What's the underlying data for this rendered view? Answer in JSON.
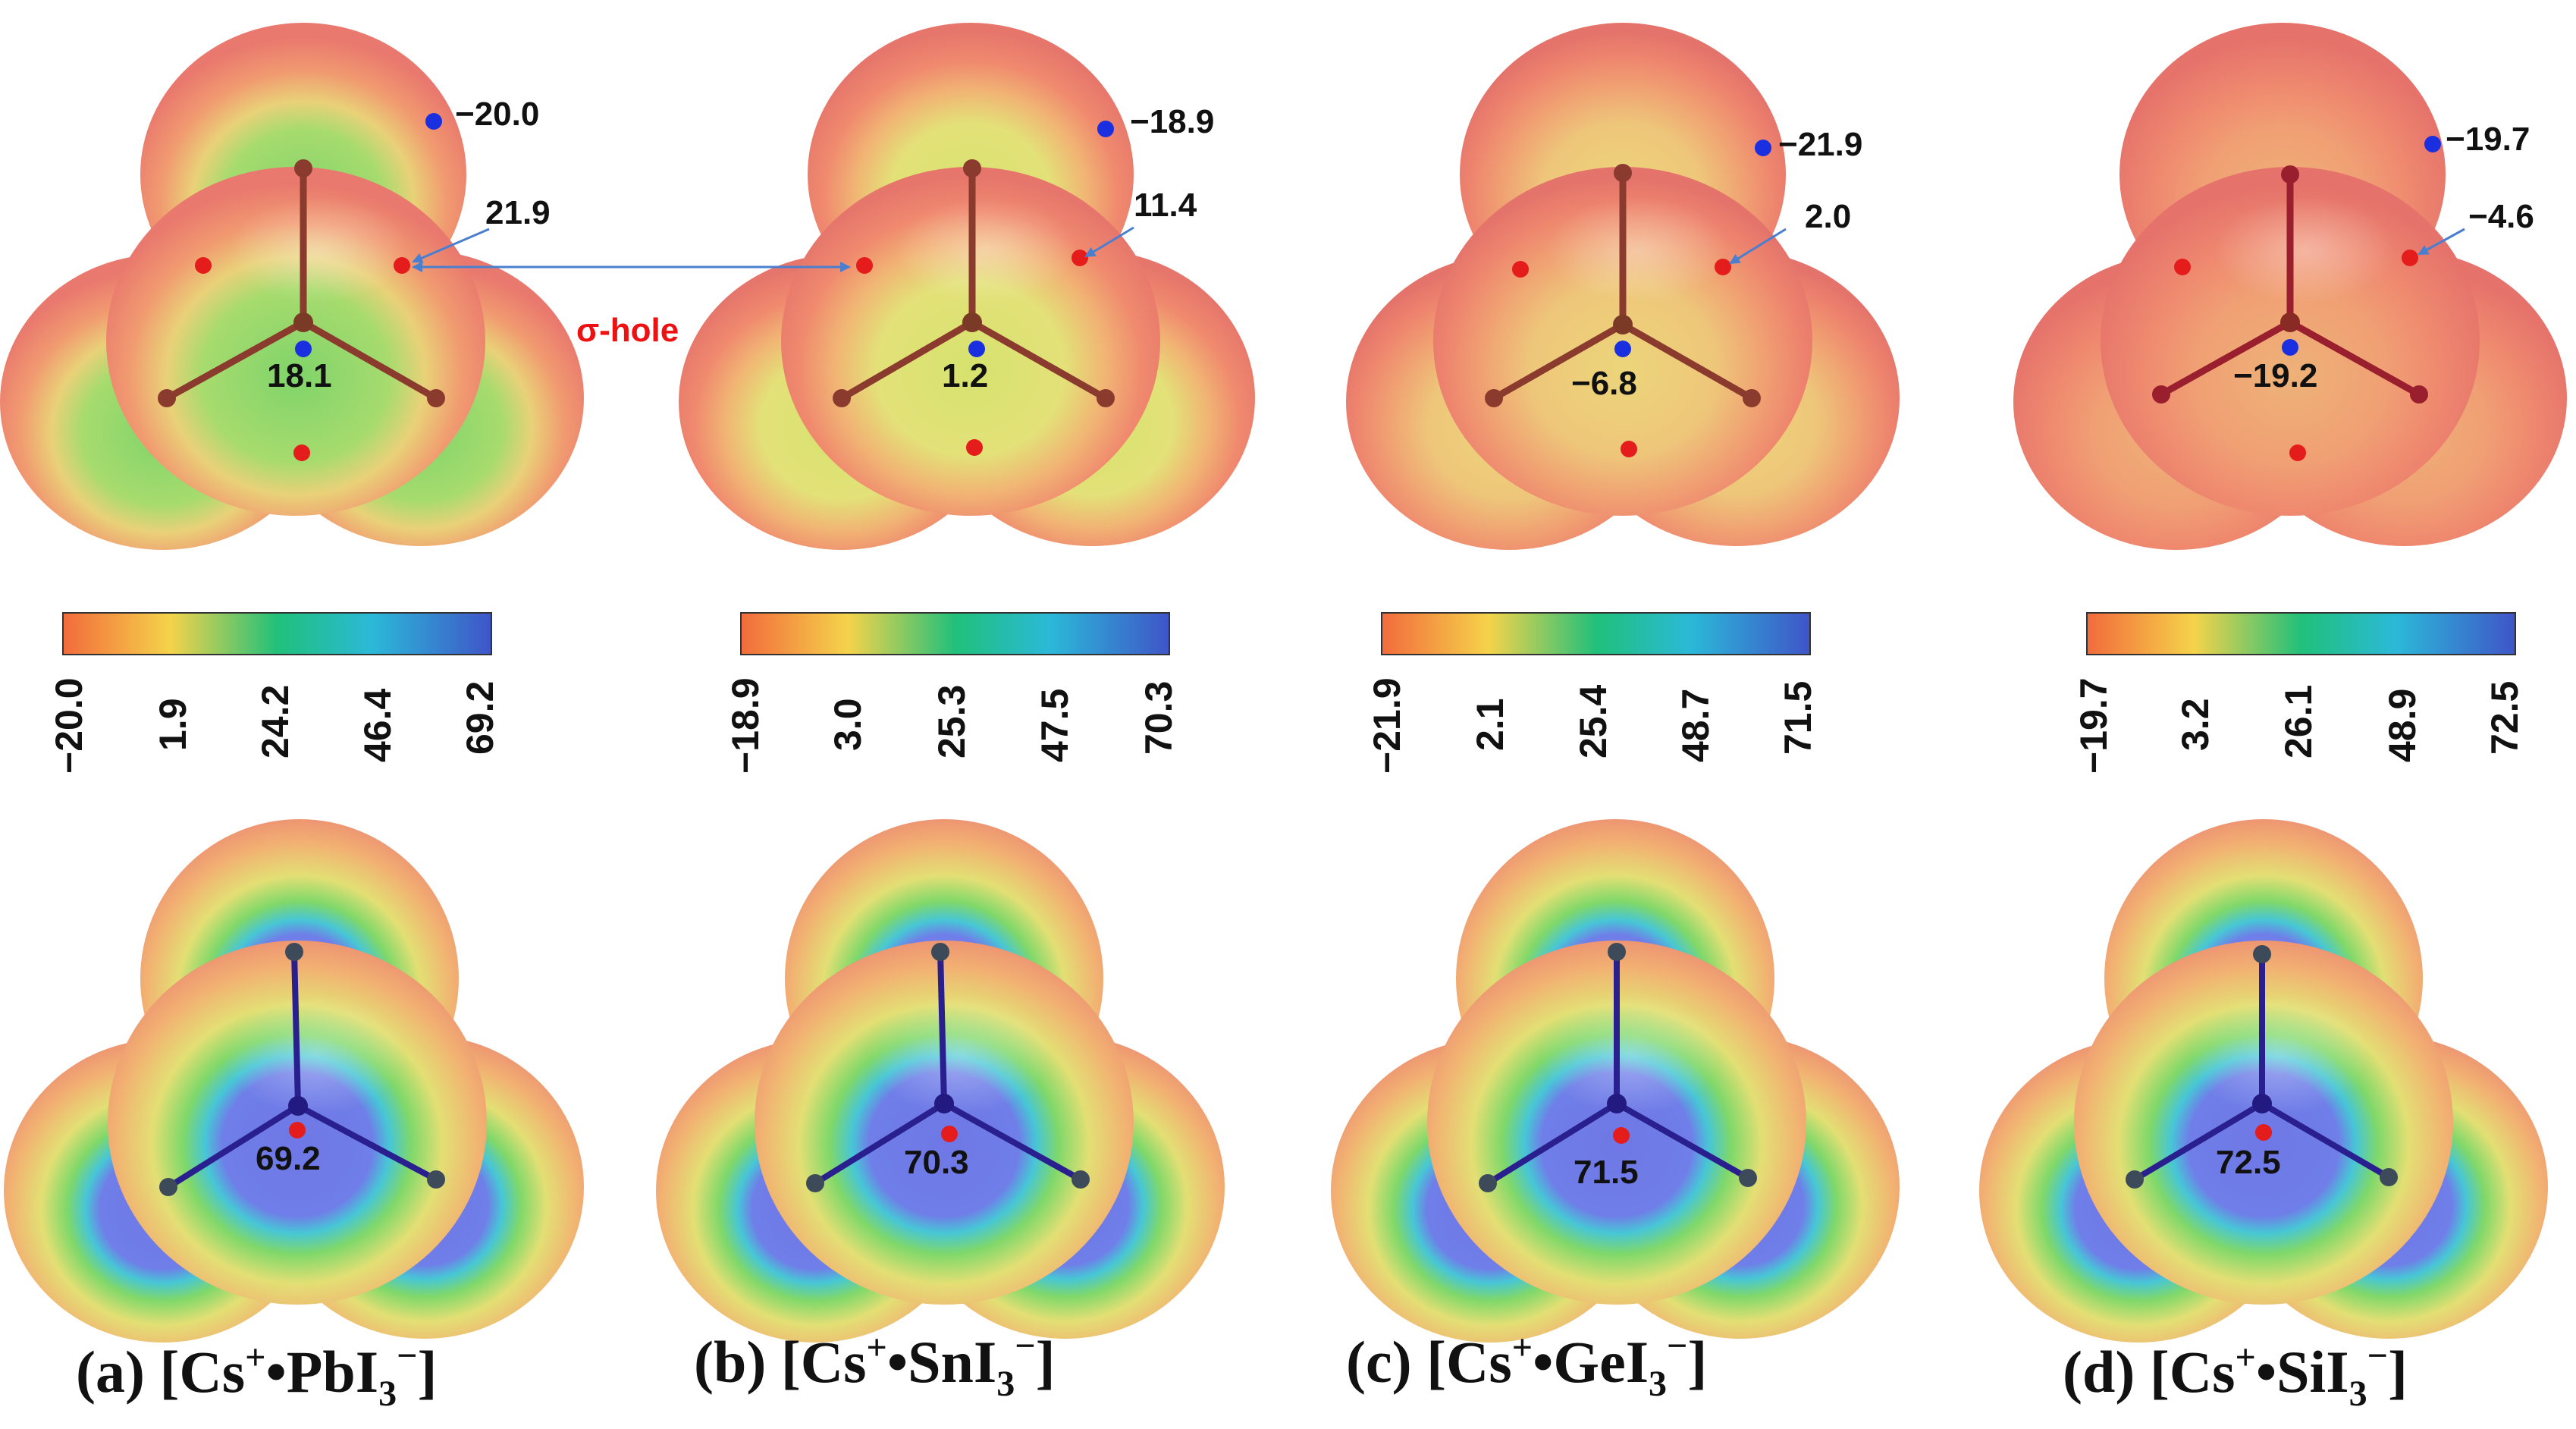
{
  "figure": {
    "annotation": "σ-hole",
    "panels": [
      {
        "id": "a",
        "caption_prefix": "(a) [Cs",
        "caption_plus": "+",
        "caption_middle": "•PbI",
        "caption_sub": "3",
        "caption_minus": "−",
        "caption_suffix": "]",
        "top": {
          "center_value": "18.1",
          "outer_min": "−20.0",
          "sigma_hole": "21.9"
        },
        "colorbar_ticks": [
          "−20.0",
          "1.9",
          "24.2",
          "46.4",
          "69.2"
        ],
        "bottom": {
          "center_value": "69.2"
        }
      },
      {
        "id": "b",
        "caption_prefix": "(b) [Cs",
        "caption_plus": "+",
        "caption_middle": "•SnI",
        "caption_sub": "3",
        "caption_minus": "−",
        "caption_suffix": "]",
        "top": {
          "center_value": "1.2",
          "outer_min": "−18.9",
          "sigma_hole": "11.4"
        },
        "colorbar_ticks": [
          "−18.9",
          "3.0",
          "25.3",
          "47.5",
          "70.3"
        ],
        "bottom": {
          "center_value": "70.3"
        }
      },
      {
        "id": "c",
        "caption_prefix": "(c) [Cs",
        "caption_plus": "+",
        "caption_middle": "•GeI",
        "caption_sub": "3",
        "caption_minus": "−",
        "caption_suffix": "]",
        "top": {
          "center_value": "−6.8",
          "outer_min": "−21.9",
          "sigma_hole": "2.0"
        },
        "colorbar_ticks": [
          "−21.9",
          "2.1",
          "25.4",
          "48.7",
          "71.5"
        ],
        "bottom": {
          "center_value": "71.5"
        }
      },
      {
        "id": "d",
        "caption_prefix": "(d) [Cs",
        "caption_plus": "+",
        "caption_middle": "•SiI",
        "caption_sub": "3",
        "caption_minus": "−",
        "caption_suffix": "]",
        "top": {
          "center_value": "−19.2",
          "outer_min": "−19.7",
          "sigma_hole": "−4.6"
        },
        "colorbar_ticks": [
          "−19.7",
          "3.2",
          "26.1",
          "48.9",
          "72.5"
        ],
        "bottom": {
          "center_value": "72.5"
        }
      }
    ],
    "colors": {
      "surface_red": "#f07a6e",
      "surface_orange": "#f4a070",
      "positive_green": "#86d26a",
      "positive_yellow": "#e6e27a",
      "positive_blue": "#6f7ae8",
      "max_point": "#e51c1c",
      "min_point": "#1a2fe0",
      "bond_top": "#8b3a2e",
      "bond_bottom": "#2a1f8f",
      "arrow": "#4a7fd0"
    }
  }
}
